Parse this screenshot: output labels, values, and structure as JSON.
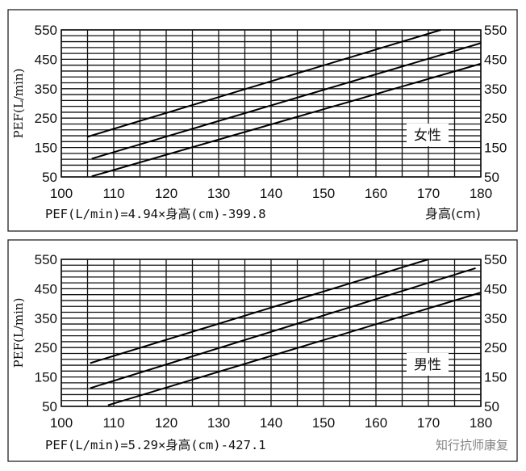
{
  "chart_data": [
    {
      "type": "line",
      "gender_label": "女性",
      "ylabel": "PEF(L/min)",
      "xlabel": "身高(cm)",
      "formula": "PEF(L/min)=4.94×身高(cm)-399.8",
      "xlim": [
        100,
        180
      ],
      "ylim": [
        50,
        550
      ],
      "x_ticks": [
        "100",
        "110",
        "120",
        "130",
        "140",
        "150",
        "160",
        "170",
        "180"
      ],
      "y_ticks": [
        "50",
        "150",
        "250",
        "350",
        "450",
        "550"
      ],
      "grid": true,
      "series": [
        {
          "x": [
            104.9,
            172.4
          ],
          "y": [
            186,
            550
          ]
        },
        {
          "x": [
            105.8,
            180
          ],
          "y": [
            112,
            505
          ]
        },
        {
          "x": [
            105.8,
            180
          ],
          "y": [
            52,
            435
          ]
        }
      ]
    },
    {
      "type": "line",
      "gender_label": "男性",
      "ylabel": "PEF(L/min)",
      "xlabel": "身高(cm)",
      "formula": "PEF(L/min)=5.29×身高(cm)-427.1",
      "xlim": [
        100,
        180
      ],
      "ylim": [
        50,
        550
      ],
      "x_ticks": [
        "100",
        "110",
        "120",
        "130",
        "140",
        "150",
        "160",
        "170",
        "180"
      ],
      "y_ticks": [
        "50",
        "150",
        "250",
        "350",
        "450",
        "550"
      ],
      "grid": true,
      "series": [
        {
          "x": [
            105.5,
            170
          ],
          "y": [
            197,
            550
          ]
        },
        {
          "x": [
            105.5,
            179
          ],
          "y": [
            112,
            520
          ]
        },
        {
          "x": [
            108.9,
            180
          ],
          "y": [
            54,
            437
          ]
        }
      ]
    }
  ],
  "watermark": "知行抗师康复"
}
